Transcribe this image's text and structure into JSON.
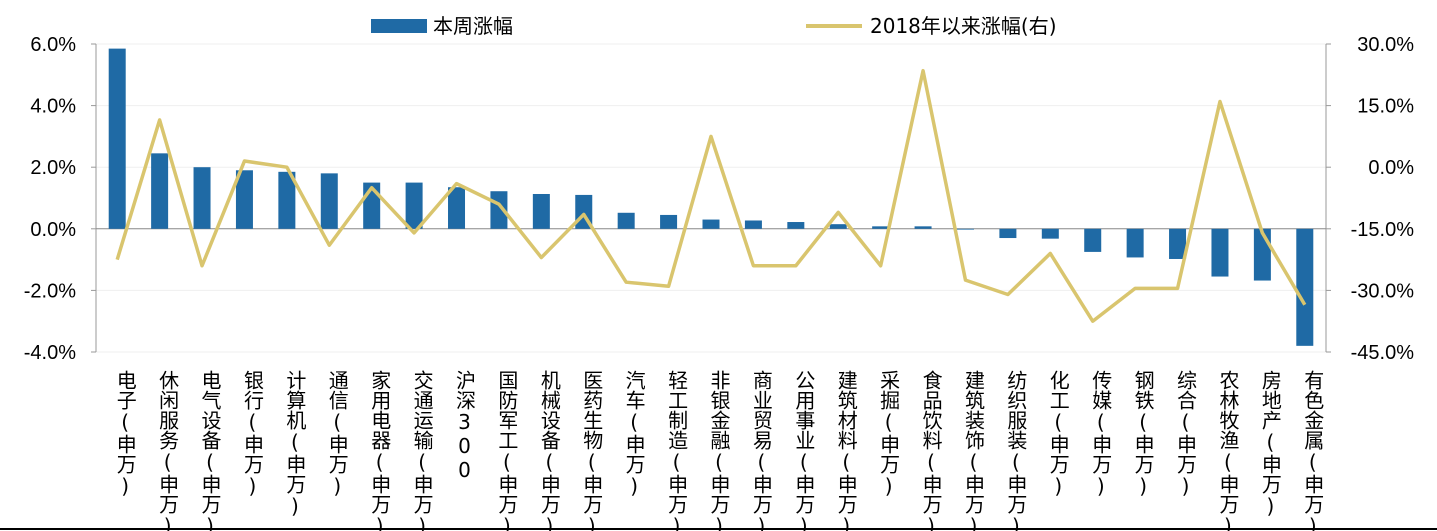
{
  "chart_data": {
    "type": "bar",
    "categories": [
      "电子(申万)",
      "休闲服务(申万)",
      "电气设备(申万)",
      "银行(申万)",
      "计算机(申万)",
      "通信(申万)",
      "家用电器(申万)",
      "交通运输(申万)",
      "沪深300",
      "国防军工(申万)",
      "机械设备(申万)",
      "医药生物(申万)",
      "汽车(申万)",
      "轻工制造(申万)",
      "非银金融(申万)",
      "商业贸易(申万)",
      "公用事业(申万)",
      "建筑材料(申万)",
      "采掘(申万)",
      "食品饮料(申万)",
      "建筑装饰(申万)",
      "纺织服装(申万)",
      "化工(申万)",
      "传媒(申万)",
      "钢铁(申万)",
      "综合(申万)",
      "农林牧渔(申万)",
      "房地产(申万)",
      "有色金属(申万)"
    ],
    "series": [
      {
        "name": "本周涨幅",
        "type": "bar",
        "axis": "left",
        "color": "#1f6aa5",
        "values": [
          5.85,
          2.45,
          2.0,
          1.9,
          1.85,
          1.8,
          1.5,
          1.5,
          1.35,
          1.22,
          1.13,
          1.1,
          0.52,
          0.45,
          0.3,
          0.27,
          0.22,
          0.15,
          0.08,
          0.08,
          -0.02,
          -0.3,
          -0.32,
          -0.75,
          -0.93,
          -0.98,
          -1.55,
          -1.68,
          -3.8
        ]
      },
      {
        "name": "2018年以来涨幅(右)",
        "type": "line",
        "axis": "right",
        "color": "#d9c56e",
        "values": [
          -22.5,
          11.5,
          -24.0,
          1.5,
          0,
          -19.0,
          -5.0,
          -16.0,
          -4.0,
          -9.0,
          -22.0,
          -11.5,
          -28.0,
          -29.0,
          7.5,
          -24.0,
          -24.0,
          -11.0,
          -24.0,
          23.5,
          -27.5,
          -31.0,
          -21.0,
          -37.5,
          -29.5,
          -29.5,
          16.0,
          -16.0,
          -33.5
        ]
      }
    ],
    "yaxis_left": {
      "min": -4.0,
      "max": 6.0,
      "ticks": [
        "6.0%",
        "4.0%",
        "2.0%",
        "0.0%",
        "-2.0%",
        "-4.0%"
      ]
    },
    "yaxis_right": {
      "min": -45,
      "max": 30,
      "ticks": [
        "30.0%",
        "15.0%",
        "0.0%",
        "-15.0%",
        "-30.0%",
        "-45.0%"
      ]
    },
    "legend": {
      "placement": "top",
      "items": [
        "本周涨幅",
        "2018年以来涨幅(右)"
      ]
    },
    "grid": true
  }
}
